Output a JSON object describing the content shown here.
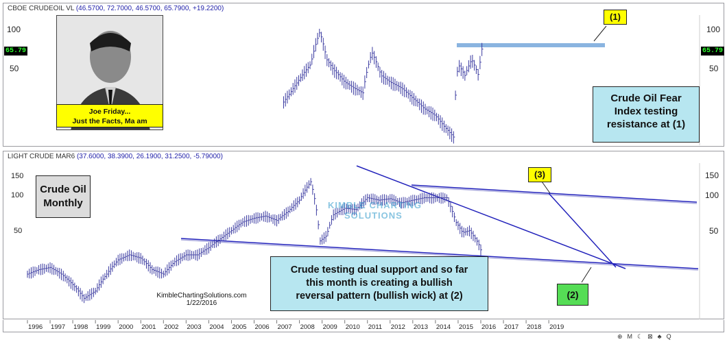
{
  "top_panel": {
    "symbol": "CBOE CRUDEOIL VL",
    "params": "(46.5700, 72.7000, 46.5700, 65.7900, +19.2200)",
    "price_tag": "65.79",
    "y_ticks": [
      "100",
      "50"
    ],
    "photo_caption_line1": "Joe Friday...",
    "photo_caption_line2": "Just the Facts, Ma am",
    "callout_label": "(1)",
    "callout_text_line1": "Crude Oil Fear",
    "callout_text_line2": "Index testing",
    "callout_text_line3": "resistance at (1)"
  },
  "bottom_panel": {
    "symbol": "LIGHT CRUDE MAR6",
    "params": "(37.6000, 38.3900, 26.1900, 31.2500, -5.79000)",
    "y_ticks": [
      "150",
      "100",
      "50"
    ],
    "title_line1": "Crude Oil",
    "title_line2": "Monthly",
    "watermark_line1": "KIMBLE CHARTING",
    "watermark_line2": "SOLUTIONS",
    "label3": "(3)",
    "label2": "(2)",
    "note_line1": "Crude testing dual support and so far",
    "note_line2": "this month is creating a bullish",
    "note_line3": "reversal pattern (bullish wick) at (2)",
    "credit_line1": "KimbleChartingSolutions.com",
    "credit_line2": "1/22/2016"
  },
  "x_axis": {
    "years": [
      "1996",
      "1997",
      "1998",
      "1999",
      "2000",
      "2001",
      "2002",
      "2003",
      "2004",
      "2005",
      "2006",
      "2007",
      "2008",
      "2009",
      "2010",
      "2011",
      "2012",
      "2013",
      "2014",
      "2015",
      "2016",
      "2017",
      "2018",
      "2019"
    ]
  },
  "toolbar": {
    "items": [
      "⊕",
      "M",
      "☾",
      "⊠",
      "♣",
      "Q"
    ]
  },
  "colors": {
    "bars": "#3a3aa0",
    "trendline": "#2222bb",
    "resistance": "#8ab4e0"
  },
  "chart_data": [
    {
      "type": "line",
      "title": "CBOE CRUDEOIL VL",
      "series": [
        {
          "name": "CBOE CRUDEOIL VL",
          "x": [
            2007.3,
            2007.6,
            2008.0,
            2008.5,
            2008.9,
            2009.2,
            2009.5,
            2010.0,
            2010.4,
            2010.8,
            2011.2,
            2011.6,
            2012.0,
            2012.5,
            2013.0,
            2013.5,
            2014.0,
            2014.4,
            2014.8,
            2015.0,
            2015.3,
            2015.6,
            2015.9,
            2016.05
          ],
          "values": [
            28,
            33,
            42,
            55,
            98,
            60,
            50,
            40,
            36,
            33,
            68,
            45,
            40,
            36,
            30,
            25,
            22,
            18,
            15,
            55,
            45,
            60,
            45,
            72
          ]
        }
      ],
      "ylim": [
        15,
        100
      ],
      "annotation": "resistance at (1)"
    },
    {
      "type": "line",
      "title": "LIGHT CRUDE MAR6",
      "series": [
        {
          "name": "LIGHT CRUDE MAR6",
          "x": [
            1996.0,
            1996.5,
            1997.0,
            1997.5,
            1998.0,
            1998.5,
            1999.0,
            1999.5,
            2000.0,
            2000.5,
            2001.0,
            2001.5,
            2002.0,
            2002.5,
            2003.0,
            2003.5,
            2004.0,
            2004.5,
            2005.0,
            2005.5,
            2006.0,
            2006.5,
            2007.0,
            2007.5,
            2008.0,
            2008.5,
            2008.9,
            2009.2,
            2009.5,
            2010.0,
            2010.5,
            2011.0,
            2011.5,
            2012.0,
            2012.5,
            2013.0,
            2013.5,
            2014.0,
            2014.5,
            2014.9,
            2015.2,
            2015.5,
            2015.9,
            2016.05
          ],
          "values": [
            20,
            22,
            23,
            20,
            16,
            12,
            14,
            20,
            27,
            30,
            28,
            22,
            20,
            26,
            30,
            30,
            35,
            42,
            50,
            60,
            65,
            68,
            62,
            75,
            95,
            140,
            40,
            45,
            70,
            80,
            78,
            100,
            95,
            98,
            90,
            95,
            100,
            100,
            100,
            60,
            48,
            50,
            38,
            31
          ]
        }
      ],
      "ylim": [
        10,
        150
      ]
    }
  ]
}
